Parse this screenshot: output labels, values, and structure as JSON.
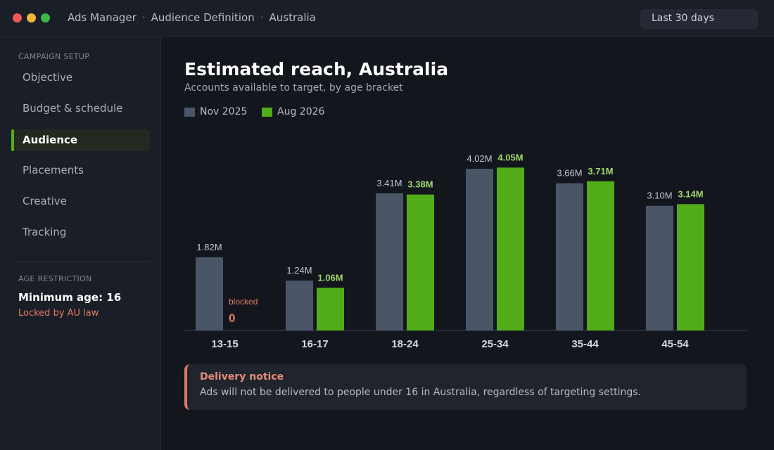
{
  "window": {
    "breadcrumbs": [
      "Ads Manager",
      "Audience Definition",
      "Australia"
    ],
    "separator": "·",
    "date_range": "Last 30 days"
  },
  "sidebar": {
    "section_heading": "CAMPAIGN SETUP",
    "items": [
      {
        "label": "Objective",
        "active": false
      },
      {
        "label": "Budget & schedule",
        "active": false
      },
      {
        "label": "Audience",
        "active": true
      },
      {
        "label": "Placements",
        "active": false
      },
      {
        "label": "Creative",
        "active": false
      },
      {
        "label": "Tracking",
        "active": false
      }
    ],
    "restriction_heading": "AGE RESTRICTION",
    "restriction_value": "Minimum age: 16",
    "restriction_note": "Locked by AU law"
  },
  "main": {
    "title": "Estimated reach, Australia",
    "subtitle": "Accounts available to target, by age bracket"
  },
  "notice": {
    "title": "Delivery notice",
    "body": "Ads will not be delivered to people under 16 in Australia, regardless of targeting settings."
  },
  "colors": {
    "accent": "#52b11b",
    "series_nov": "#4a5568",
    "series_aug": "#52ac18",
    "warning": "#e07a65"
  },
  "chart_data": {
    "type": "bar",
    "title": "Estimated reach, Australia",
    "subtitle": "Accounts available to target, by age bracket",
    "categories": [
      "13-15",
      "16-17",
      "18-24",
      "25-34",
      "35-44",
      "45-54"
    ],
    "series": [
      {
        "name": "Nov 2025",
        "color": "#4a5568",
        "values": [
          1.82,
          1.24,
          3.41,
          4.02,
          3.66,
          3.1
        ],
        "labels": [
          "1.82M",
          "1.24M",
          "3.41M",
          "4.02M",
          "3.66M",
          "3.10M"
        ]
      },
      {
        "name": "Aug 2026",
        "color": "#52ac18",
        "values": [
          0,
          1.06,
          3.38,
          4.05,
          3.71,
          3.14
        ],
        "labels": [
          "0",
          "1.06M",
          "3.38M",
          "4.05M",
          "3.71M",
          "3.14M"
        ]
      }
    ],
    "annotations": [
      {
        "category": "13-15",
        "series": "Aug 2026",
        "text": "blocked"
      }
    ],
    "unit": "M",
    "ylim": [
      0,
      4.5
    ],
    "grid": false,
    "legend_position": "top-left"
  }
}
